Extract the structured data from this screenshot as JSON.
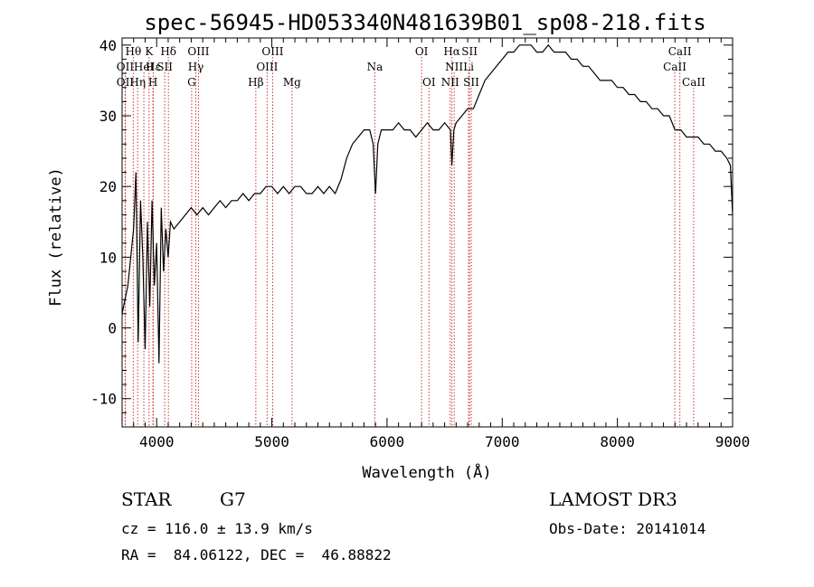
{
  "chart_data": {
    "type": "line",
    "title": "spec-56945-HD053340N481639B01_sp08-218.fits",
    "xlabel": "Wavelength (Å)",
    "ylabel": "Flux (relative)",
    "xlim": [
      3700,
      9000
    ],
    "ylim": [
      -14,
      41
    ],
    "xticks": [
      4000,
      5000,
      6000,
      7000,
      8000,
      9000
    ],
    "yticks": [
      -10,
      0,
      10,
      20,
      30,
      40
    ],
    "grid": false,
    "line_color": "#000000",
    "marker_color": "#cc3333",
    "x": [
      3700,
      3750,
      3800,
      3820,
      3840,
      3860,
      3880,
      3900,
      3920,
      3940,
      3960,
      3980,
      4000,
      4020,
      4040,
      4060,
      4080,
      4100,
      4120,
      4150,
      4200,
      4250,
      4300,
      4350,
      4400,
      4450,
      4500,
      4550,
      4600,
      4650,
      4700,
      4750,
      4800,
      4850,
      4900,
      4950,
      5000,
      5050,
      5100,
      5150,
      5200,
      5250,
      5300,
      5350,
      5400,
      5450,
      5500,
      5550,
      5600,
      5650,
      5700,
      5750,
      5800,
      5850,
      5880,
      5900,
      5920,
      5950,
      6000,
      6050,
      6100,
      6150,
      6200,
      6250,
      6300,
      6350,
      6400,
      6450,
      6500,
      6550,
      6563,
      6580,
      6600,
      6650,
      6700,
      6750,
      6800,
      6850,
      6900,
      6950,
      7000,
      7050,
      7100,
      7150,
      7200,
      7250,
      7300,
      7350,
      7400,
      7450,
      7500,
      7550,
      7600,
      7650,
      7700,
      7750,
      7800,
      7850,
      7900,
      7950,
      8000,
      8050,
      8100,
      8150,
      8200,
      8250,
      8300,
      8350,
      8400,
      8450,
      8500,
      8550,
      8600,
      8650,
      8700,
      8750,
      8800,
      8850,
      8900,
      8950,
      8980,
      9000
    ],
    "y": [
      2,
      6,
      14,
      22,
      -2,
      18,
      10,
      -3,
      15,
      3,
      18,
      6,
      12,
      -5,
      17,
      8,
      14,
      10,
      15,
      14,
      15,
      16,
      17,
      16,
      17,
      16,
      17,
      18,
      17,
      18,
      18,
      19,
      18,
      19,
      19,
      20,
      20,
      19,
      20,
      19,
      20,
      20,
      19,
      19,
      20,
      19,
      20,
      19,
      21,
      24,
      26,
      27,
      28,
      28,
      26,
      19,
      26,
      28,
      28,
      28,
      29,
      28,
      28,
      27,
      28,
      29,
      28,
      28,
      29,
      28,
      23,
      28,
      29,
      30,
      31,
      31,
      33,
      35,
      36,
      37,
      38,
      39,
      39,
      40,
      40,
      40,
      39,
      39,
      40,
      39,
      39,
      39,
      38,
      38,
      37,
      37,
      36,
      35,
      35,
      35,
      34,
      34,
      33,
      33,
      32,
      32,
      31,
      31,
      30,
      30,
      28,
      28,
      27,
      27,
      27,
      26,
      26,
      25,
      25,
      24,
      23,
      16
    ],
    "lines": [
      {
        "label": "OII",
        "x": 3727,
        "row": 2
      },
      {
        "label": "OII",
        "x": 3727,
        "row": 3
      },
      {
        "label": "Hθ",
        "x": 3797,
        "row": 1
      },
      {
        "label": "Hη",
        "x": 3835,
        "row": 3
      },
      {
        "label": "HeI",
        "x": 3889,
        "row": 2
      },
      {
        "label": "K",
        "x": 3934,
        "row": 1
      },
      {
        "label": "Hε",
        "x": 3970,
        "row": 2
      },
      {
        "label": "SII",
        "x": 4070,
        "row": 2
      },
      {
        "label": "H",
        "x": 3968,
        "row": 3
      },
      {
        "label": "Hδ",
        "x": 4102,
        "row": 1
      },
      {
        "label": "G",
        "x": 4304,
        "row": 3
      },
      {
        "label": "Hγ",
        "x": 4340,
        "row": 2
      },
      {
        "label": "OIII",
        "x": 4363,
        "row": 1
      },
      {
        "label": "Hβ",
        "x": 4861,
        "row": 3
      },
      {
        "label": "OIII",
        "x": 4959,
        "row": 2
      },
      {
        "label": "OIII",
        "x": 5007,
        "row": 1
      },
      {
        "label": "Mg",
        "x": 5175,
        "row": 3
      },
      {
        "label": "Na",
        "x": 5894,
        "row": 2
      },
      {
        "label": "OI",
        "x": 6300,
        "row": 1
      },
      {
        "label": "OI",
        "x": 6364,
        "row": 3
      },
      {
        "label": "NII",
        "x": 6548,
        "row": 3
      },
      {
        "label": "Hα",
        "x": 6563,
        "row": 1
      },
      {
        "label": "NII",
        "x": 6583,
        "row": 2
      },
      {
        "label": "SII",
        "x": 6716,
        "row": 1
      },
      {
        "label": "Li",
        "x": 6708,
        "row": 2
      },
      {
        "label": "SII",
        "x": 6731,
        "row": 3
      },
      {
        "label": "CaII",
        "x": 8498,
        "row": 2
      },
      {
        "label": "CaII",
        "x": 8542,
        "row": 1
      },
      {
        "label": "CaII",
        "x": 8662,
        "row": 3
      }
    ]
  },
  "info": {
    "class_label": "STAR",
    "subclass": "G7",
    "survey": "LAMOST DR3",
    "cz": "cz = 116.0 ± 13.9 km/s",
    "obs_date": "Obs-Date: 20141014",
    "coords": "RA =  84.06122, DEC =  46.88822"
  }
}
